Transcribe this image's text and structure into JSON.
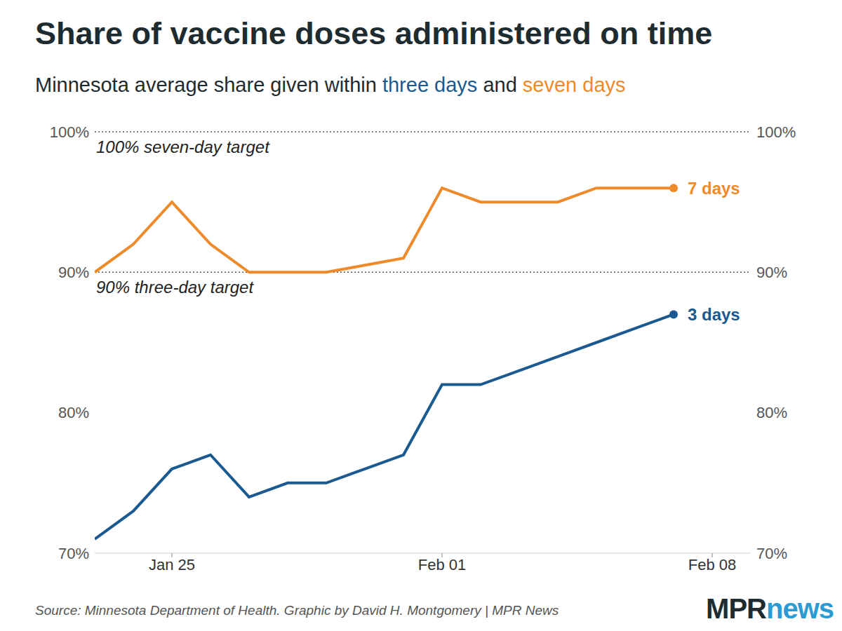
{
  "chart_data": {
    "type": "line",
    "title": "Share of vaccine doses administered on time",
    "subtitle": [
      {
        "text": "Minnesota average share given within "
      },
      {
        "text": "three days",
        "color": "#1b5a90"
      },
      {
        "text": " and "
      },
      {
        "text": "seven days",
        "color": "#ef8a2a"
      }
    ],
    "x": [
      23,
      24,
      25,
      26,
      27,
      28,
      29,
      30,
      31,
      32,
      33,
      34,
      35,
      36,
      37,
      38
    ],
    "xlim": [
      23,
      40
    ],
    "xticks": [
      {
        "value": 25,
        "label": "Jan 25"
      },
      {
        "value": 32,
        "label": "Feb 01"
      },
      {
        "value": 39,
        "label": "Feb 08"
      }
    ],
    "ylim": [
      70,
      100
    ],
    "yticks": [
      {
        "value": 70,
        "label": "70%"
      },
      {
        "value": 80,
        "label": "80%"
      },
      {
        "value": 90,
        "label": "90%"
      },
      {
        "value": 100,
        "label": "100%"
      }
    ],
    "grid": false,
    "series": [
      {
        "name": "7 days",
        "color": "#ef8a2a",
        "values": [
          90,
          92,
          95,
          92,
          90,
          90,
          90,
          90.5,
          91,
          96,
          95,
          95,
          95,
          96,
          96,
          96
        ]
      },
      {
        "name": "3 days",
        "color": "#1b5a90",
        "values": [
          71,
          73,
          76,
          77,
          74,
          75,
          75,
          76,
          77,
          82,
          82,
          83,
          84,
          85,
          86,
          87
        ]
      }
    ],
    "annotations": [
      {
        "y": 100,
        "text": "100% seven-day target"
      },
      {
        "y": 90,
        "text": "90% three-day target"
      }
    ],
    "source": "Source: Minnesota Department of Health. Graphic by David H. Montgomery | MPR News",
    "logo": [
      {
        "text": "MPR",
        "color": "#1e2b2f"
      },
      {
        "text": "news",
        "color": "#2b9bd3"
      }
    ]
  }
}
